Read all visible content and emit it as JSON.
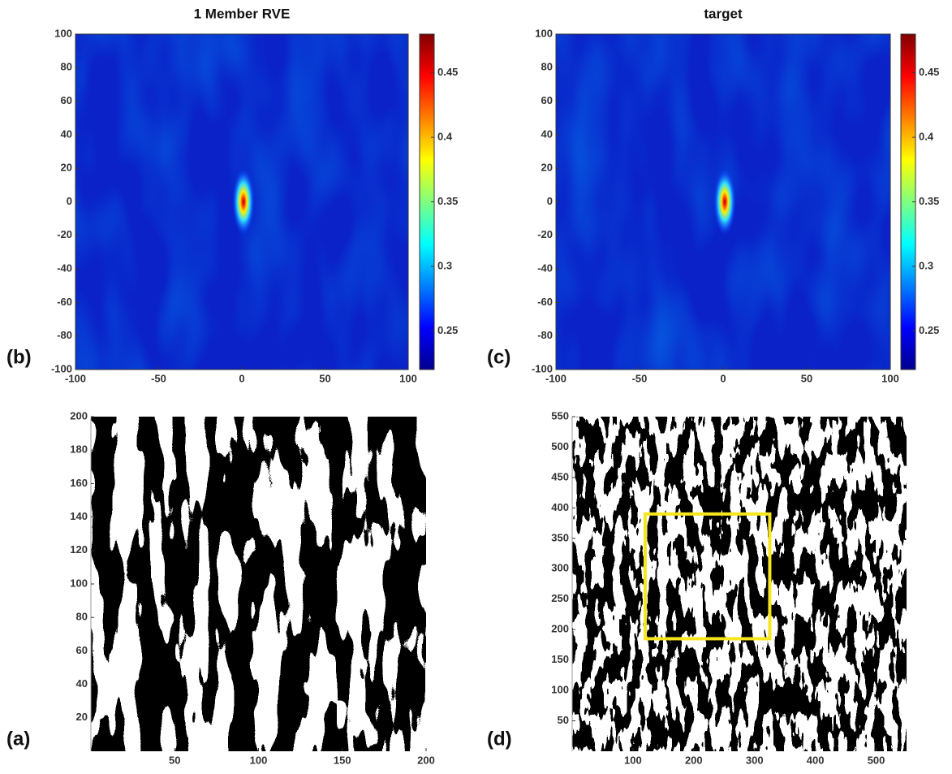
{
  "chart_data": [
    {
      "type": "heatmap",
      "title": "1 Member RVE",
      "panel_label": "(b)",
      "xlim": [
        -100,
        100
      ],
      "ylim": [
        -100,
        100
      ],
      "xticks": [
        -100,
        -50,
        0,
        50,
        100
      ],
      "yticks": [
        -100,
        -80,
        -60,
        -40,
        -20,
        0,
        20,
        40,
        60,
        80,
        100
      ],
      "clim": [
        0.22,
        0.48
      ],
      "cticks": [
        0.25,
        0.3,
        0.35,
        0.4,
        0.45
      ]
    },
    {
      "type": "heatmap",
      "title": "target",
      "panel_label": "(c)",
      "xlim": [
        -100,
        100
      ],
      "ylim": [
        -100,
        100
      ],
      "xticks": [
        -100,
        -50,
        0,
        50,
        100
      ],
      "yticks": [
        -100,
        -80,
        -60,
        -40,
        -20,
        0,
        20,
        40,
        60,
        80,
        100
      ],
      "clim": [
        0.22,
        0.48
      ],
      "cticks": [
        0.25,
        0.3,
        0.35,
        0.4,
        0.45
      ]
    },
    {
      "type": "image",
      "panel_label": "(a)",
      "xlim": [
        0,
        200
      ],
      "ylim": [
        0,
        200
      ],
      "xticks": [
        50,
        100,
        150,
        200
      ],
      "yticks": [
        20,
        40,
        60,
        80,
        100,
        120,
        140,
        160,
        180,
        200
      ]
    },
    {
      "type": "image",
      "panel_label": "(d)",
      "xlim": [
        0,
        550
      ],
      "ylim": [
        0,
        550
      ],
      "xticks": [
        100,
        200,
        300,
        400,
        500
      ],
      "yticks": [
        50,
        100,
        150,
        200,
        250,
        300,
        350,
        400,
        450,
        500,
        550
      ],
      "box": {
        "x": [
          120,
          325
        ],
        "y": [
          185,
          390
        ],
        "color": "#f5e61e"
      }
    }
  ]
}
